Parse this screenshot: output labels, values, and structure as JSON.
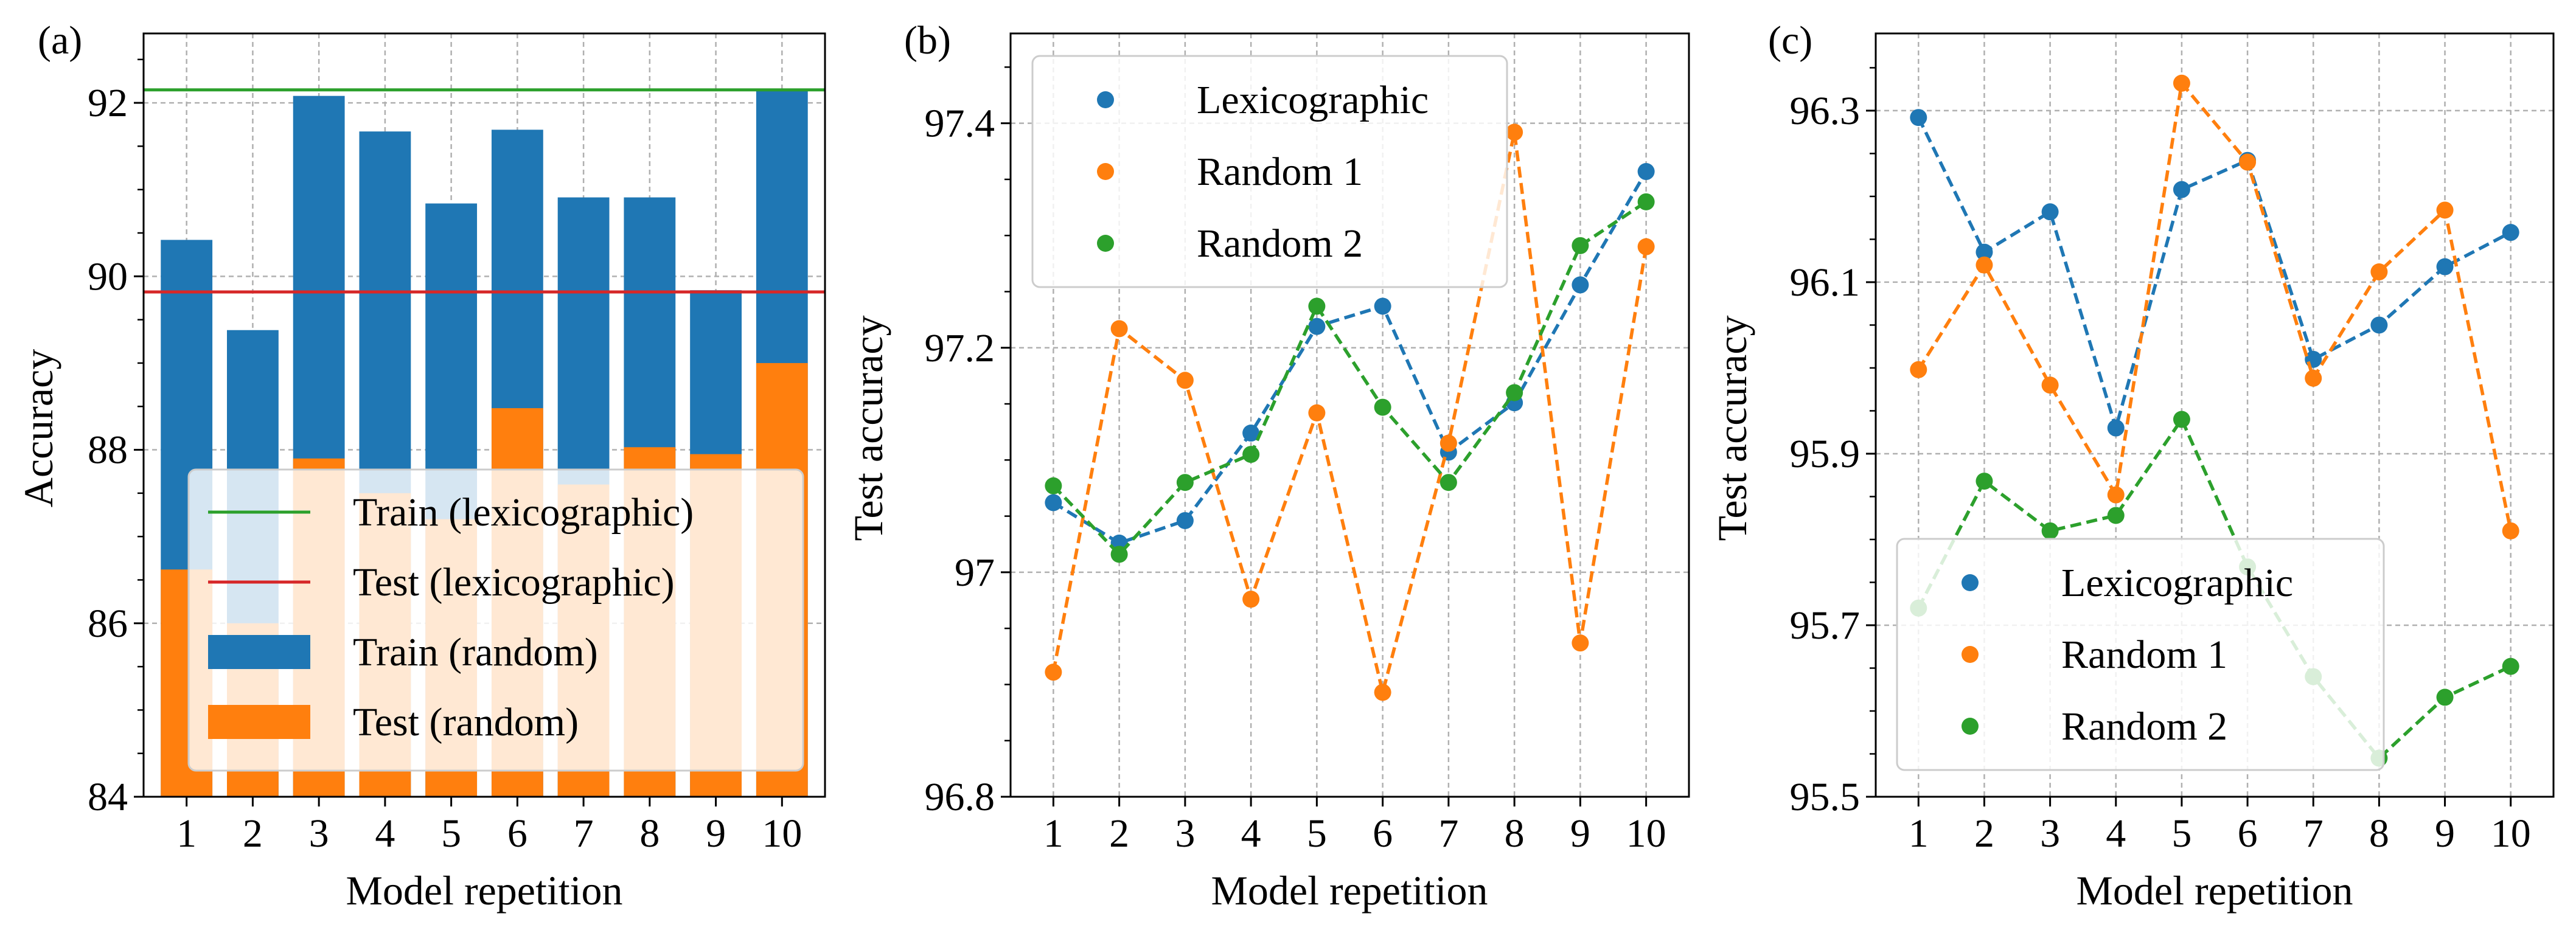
{
  "chart_data": [
    {
      "panel_label": "(a)",
      "type": "bar",
      "xlabel": "Model repetition",
      "ylabel": "Accuracy",
      "categories": [
        "1",
        "2",
        "3",
        "4",
        "5",
        "6",
        "7",
        "8",
        "9",
        "10"
      ],
      "ylim": [
        84,
        92.8
      ],
      "yticks": [
        84,
        86,
        88,
        90,
        92
      ],
      "grid": true,
      "legend_position": "lower-right",
      "series": [
        {
          "name": "Train (random)",
          "kind": "bar",
          "color": "#1f77b4",
          "values": [
            90.42,
            89.38,
            92.08,
            91.67,
            90.84,
            91.69,
            90.91,
            90.91,
            89.84,
            92.16
          ]
        },
        {
          "name": "Test (random)",
          "kind": "bar",
          "color": "#ff7f0e",
          "values": [
            86.62,
            86.0,
            87.9,
            87.5,
            87.2,
            88.48,
            87.6,
            88.03,
            87.95,
            89.0
          ]
        },
        {
          "name": "Train (lexicographic)",
          "kind": "hline",
          "color": "#2ca02c",
          "value": 92.15
        },
        {
          "name": "Test (lexicographic)",
          "kind": "hline",
          "color": "#d62728",
          "value": 89.82
        }
      ]
    },
    {
      "panel_label": "(b)",
      "type": "line",
      "xlabel": "Model repetition",
      "ylabel": "Test accuracy",
      "x": [
        1,
        2,
        3,
        4,
        5,
        6,
        7,
        8,
        9,
        10
      ],
      "ylim": [
        96.8,
        97.48
      ],
      "yticks": [
        96.8,
        97.0,
        97.2,
        97.4
      ],
      "grid": true,
      "legend_position": "upper-left",
      "series": [
        {
          "name": "Lexicographic",
          "color": "#1f77b4",
          "values": [
            97.062,
            97.026,
            97.046,
            97.124,
            97.219,
            97.237,
            97.107,
            97.151,
            97.256,
            97.357
          ]
        },
        {
          "name": "Random 1",
          "color": "#ff7f0e",
          "values": [
            96.911,
            97.217,
            97.171,
            96.976,
            97.142,
            96.893,
            97.115,
            97.392,
            96.937,
            97.29
          ]
        },
        {
          "name": "Random 2",
          "color": "#2ca02c",
          "values": [
            97.077,
            97.016,
            97.08,
            97.105,
            97.237,
            97.147,
            97.08,
            97.16,
            97.291,
            97.33
          ]
        }
      ]
    },
    {
      "panel_label": "(c)",
      "type": "line",
      "xlabel": "Model repetition",
      "ylabel": "Test accuracy",
      "x": [
        1,
        2,
        3,
        4,
        5,
        6,
        7,
        8,
        9,
        10
      ],
      "ylim": [
        95.5,
        96.39
      ],
      "yticks": [
        95.5,
        95.7,
        95.9,
        96.1,
        96.3
      ],
      "grid": true,
      "legend_position": "lower-left",
      "series": [
        {
          "name": "Lexicographic",
          "color": "#1f77b4",
          "values": [
            96.292,
            96.135,
            96.182,
            95.93,
            96.208,
            96.242,
            96.01,
            96.05,
            96.118,
            96.158
          ]
        },
        {
          "name": "Random 1",
          "color": "#ff7f0e",
          "values": [
            95.998,
            96.12,
            95.98,
            95.852,
            96.332,
            96.24,
            95.988,
            96.112,
            96.184,
            95.81
          ]
        },
        {
          "name": "Random 2",
          "color": "#2ca02c",
          "values": [
            95.72,
            95.868,
            95.81,
            95.828,
            95.94,
            95.768,
            95.64,
            95.545,
            95.616,
            95.652
          ]
        }
      ]
    }
  ]
}
